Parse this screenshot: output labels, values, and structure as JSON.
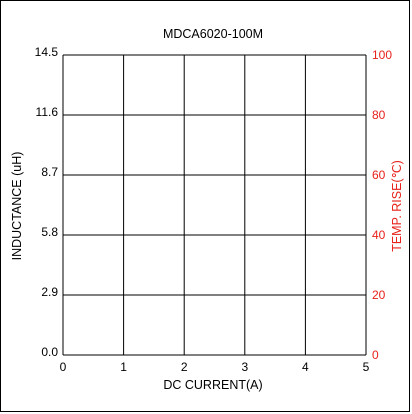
{
  "chart_data": {
    "type": "line",
    "title": "MDCA6020-100M",
    "xlabel": "DC CURRENT(A)",
    "ylabel_left": "INDUCTANCE (uH)",
    "ylabel_right": "TEMP. RISE(℃)",
    "x_ticks": [
      "0",
      "1",
      "2",
      "3",
      "4",
      "5"
    ],
    "y_left_ticks": [
      "0.0",
      "2.9",
      "5.8",
      "8.7",
      "11.6",
      "14.5"
    ],
    "y_right_ticks": [
      "0",
      "20",
      "40",
      "60",
      "80",
      "100"
    ],
    "xlim": [
      0,
      5
    ],
    "ylim_left": [
      0,
      14.5
    ],
    "ylim_right": [
      0,
      100
    ],
    "grid": true,
    "series": [],
    "colors": {
      "axis": "#000000",
      "right_axis_text": "#e8211b"
    }
  }
}
